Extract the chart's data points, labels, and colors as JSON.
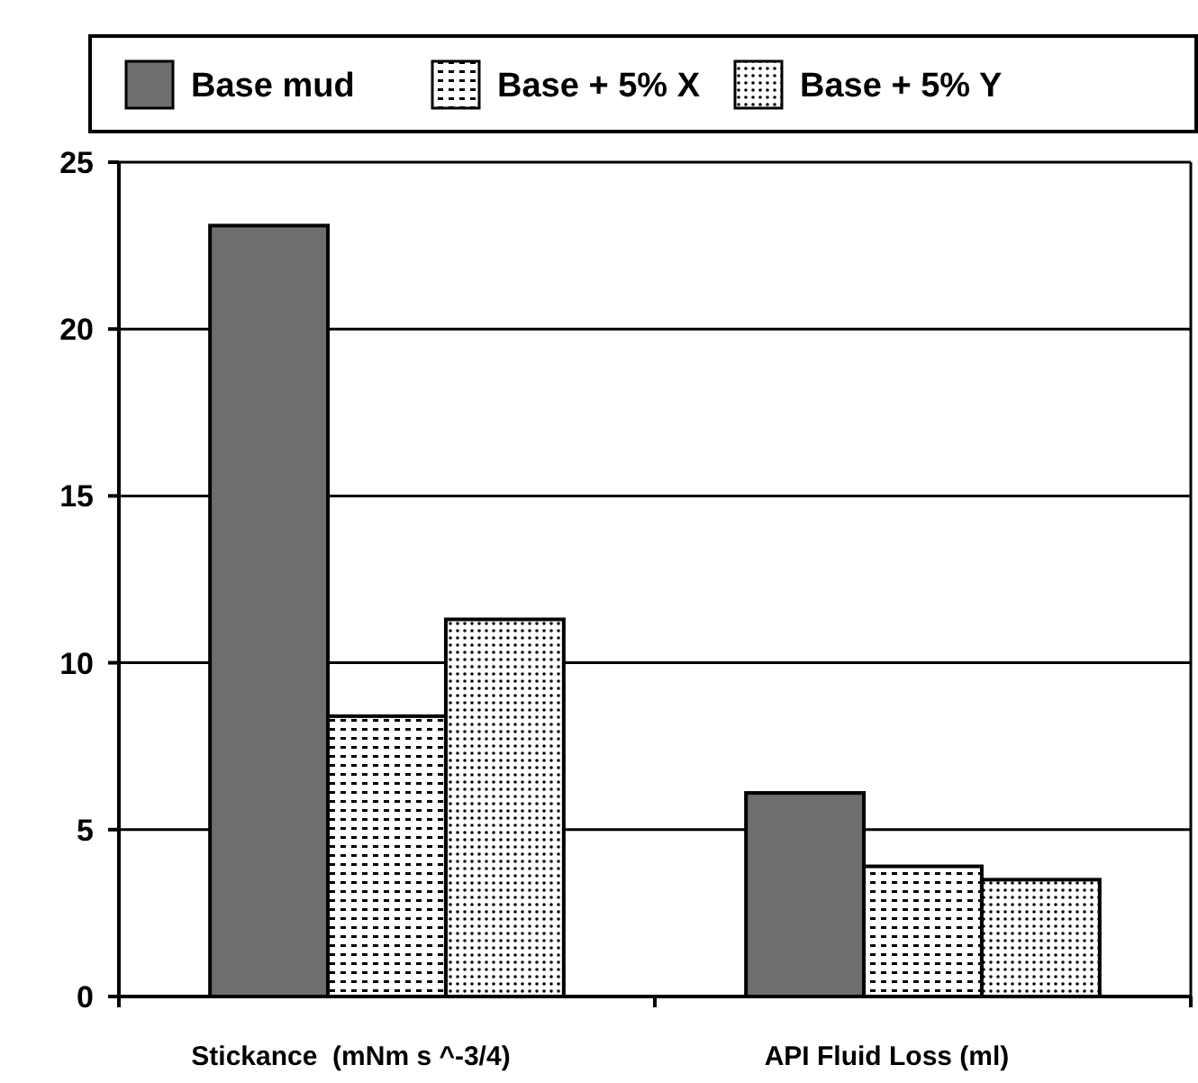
{
  "chart_data": {
    "type": "bar",
    "categories": [
      "Stickance  (mNm s ^-3/4)",
      "API Fluid Loss (ml)"
    ],
    "series": [
      {
        "name": "Base mud",
        "color": "#6e6e6e",
        "values": [
          23.1,
          6.1
        ]
      },
      {
        "name": "Base + 5% X",
        "color": "#000000",
        "values": [
          8.4,
          3.9
        ]
      },
      {
        "name": "Base + 5% Y",
        "color": "#000000",
        "values": [
          11.3,
          3.5
        ]
      }
    ],
    "ylim": [
      0,
      25
    ],
    "yticks": [
      0,
      5,
      10,
      15,
      20,
      25
    ],
    "grid": "y",
    "legend": "top"
  }
}
